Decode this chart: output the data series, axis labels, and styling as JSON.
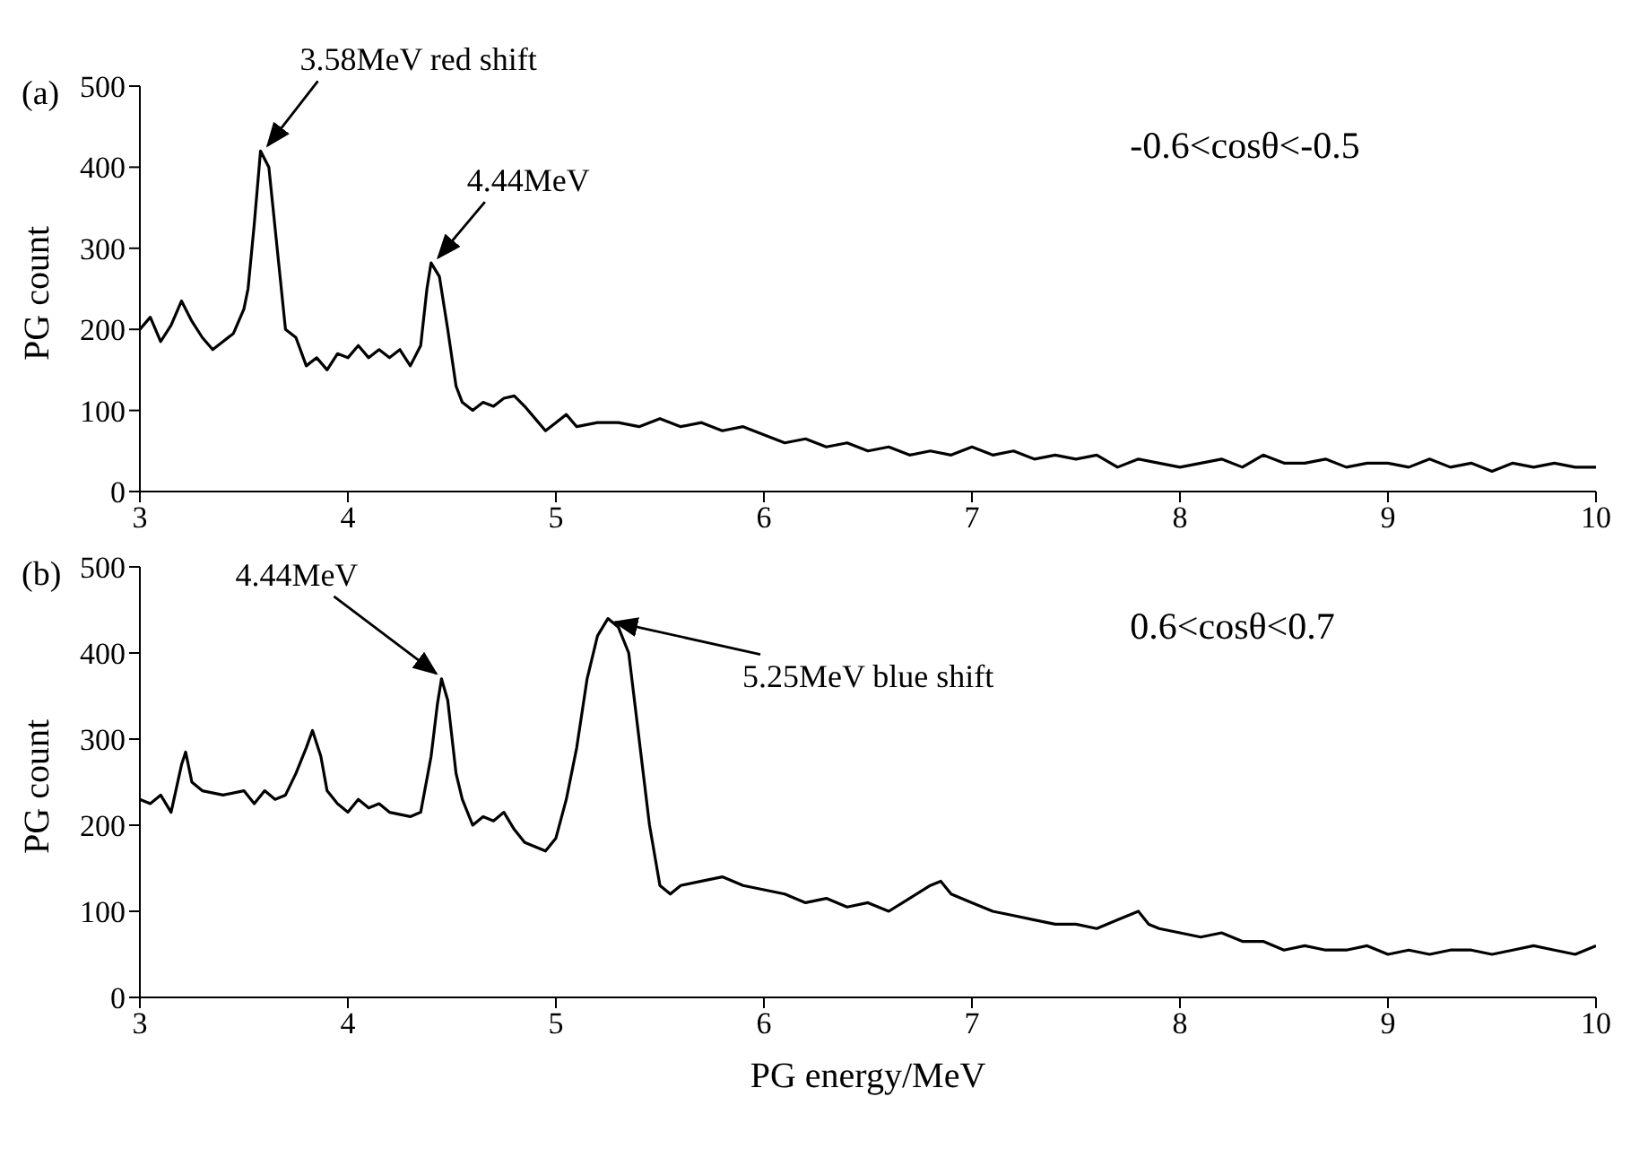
{
  "chart_data": [
    {
      "type": "line",
      "ylabel": "PG count",
      "annotations": [
        "(a)",
        "-0.6<cosθ<-0.5",
        {
          "text": "3.58MeV red shift",
          "x": 3.58,
          "y": 420
        },
        {
          "text": "4.44MeV",
          "x": 4.4,
          "y": 282
        }
      ],
      "x": [
        3.0,
        3.05,
        3.1,
        3.15,
        3.2,
        3.25,
        3.3,
        3.35,
        3.4,
        3.45,
        3.5,
        3.52,
        3.55,
        3.58,
        3.62,
        3.66,
        3.7,
        3.75,
        3.8,
        3.85,
        3.9,
        3.95,
        4.0,
        4.05,
        4.1,
        4.15,
        4.2,
        4.25,
        4.3,
        4.35,
        4.38,
        4.4,
        4.44,
        4.48,
        4.52,
        4.55,
        4.6,
        4.65,
        4.7,
        4.75,
        4.8,
        4.85,
        4.9,
        4.95,
        5.0,
        5.05,
        5.1,
        5.2,
        5.3,
        5.4,
        5.5,
        5.6,
        5.7,
        5.8,
        5.9,
        6.0,
        6.1,
        6.2,
        6.3,
        6.4,
        6.5,
        6.6,
        6.7,
        6.8,
        6.9,
        7.0,
        7.1,
        7.2,
        7.3,
        7.4,
        7.5,
        7.6,
        7.7,
        7.8,
        7.9,
        8.0,
        8.1,
        8.2,
        8.3,
        8.4,
        8.5,
        8.6,
        8.7,
        8.8,
        8.9,
        9.0,
        9.1,
        9.2,
        9.3,
        9.4,
        9.5,
        9.6,
        9.7,
        9.8,
        9.9,
        10.0
      ],
      "series": [
        {
          "color": "#000000",
          "values": [
            200,
            215,
            185,
            205,
            235,
            210,
            190,
            175,
            185,
            195,
            225,
            250,
            330,
            420,
            400,
            300,
            200,
            190,
            155,
            165,
            150,
            170,
            165,
            180,
            165,
            175,
            165,
            175,
            155,
            180,
            250,
            282,
            265,
            200,
            130,
            110,
            100,
            110,
            105,
            115,
            118,
            105,
            90,
            75,
            85,
            95,
            80,
            85,
            85,
            80,
            90,
            80,
            85,
            75,
            80,
            70,
            60,
            65,
            55,
            60,
            50,
            55,
            45,
            50,
            45,
            55,
            45,
            50,
            40,
            45,
            40,
            45,
            30,
            40,
            35,
            30,
            35,
            40,
            30,
            45,
            35,
            35,
            40,
            30,
            35,
            35,
            30,
            40,
            30,
            35,
            25,
            35,
            30,
            35,
            30,
            30
          ]
        }
      ],
      "xlim": [
        3,
        10
      ],
      "xticks": [
        3,
        4,
        5,
        6,
        7,
        8,
        9,
        10
      ],
      "ylim": [
        0,
        500
      ],
      "yticks": [
        0,
        100,
        200,
        300,
        400,
        500
      ],
      "grid": false,
      "legend": false,
      "marker": "none",
      "line_style": "solid"
    },
    {
      "type": "line",
      "xlabel": "PG energy/MeV",
      "ylabel": "PG count",
      "annotations": [
        "(b)",
        "0.6<cosθ<0.7",
        {
          "text": "4.44MeV",
          "x": 4.45,
          "y": 370
        },
        {
          "text": "5.25MeV blue shift",
          "x": 5.25,
          "y": 440
        }
      ],
      "x": [
        3.0,
        3.05,
        3.1,
        3.15,
        3.2,
        3.22,
        3.25,
        3.3,
        3.4,
        3.5,
        3.55,
        3.6,
        3.65,
        3.7,
        3.75,
        3.8,
        3.83,
        3.87,
        3.9,
        3.95,
        4.0,
        4.05,
        4.1,
        4.15,
        4.2,
        4.3,
        4.35,
        4.4,
        4.43,
        4.45,
        4.48,
        4.52,
        4.55,
        4.6,
        4.65,
        4.7,
        4.75,
        4.8,
        4.85,
        4.9,
        4.95,
        5.0,
        5.05,
        5.1,
        5.15,
        5.2,
        5.25,
        5.3,
        5.35,
        5.4,
        5.45,
        5.5,
        5.55,
        5.6,
        5.7,
        5.8,
        5.9,
        6.0,
        6.1,
        6.2,
        6.3,
        6.4,
        6.5,
        6.6,
        6.7,
        6.8,
        6.85,
        6.9,
        7.0,
        7.1,
        7.2,
        7.3,
        7.4,
        7.5,
        7.6,
        7.7,
        7.8,
        7.85,
        7.9,
        8.0,
        8.1,
        8.2,
        8.3,
        8.4,
        8.5,
        8.6,
        8.7,
        8.8,
        8.9,
        9.0,
        9.1,
        9.2,
        9.3,
        9.4,
        9.5,
        9.6,
        9.7,
        9.8,
        9.9,
        10.0
      ],
      "series": [
        {
          "color": "#000000",
          "values": [
            230,
            225,
            235,
            215,
            270,
            285,
            250,
            240,
            235,
            240,
            225,
            240,
            230,
            235,
            260,
            290,
            310,
            280,
            240,
            225,
            215,
            230,
            220,
            225,
            215,
            210,
            215,
            280,
            340,
            370,
            345,
            260,
            230,
            200,
            210,
            205,
            215,
            195,
            180,
            175,
            170,
            185,
            230,
            290,
            370,
            420,
            440,
            430,
            400,
            300,
            200,
            130,
            120,
            130,
            135,
            140,
            130,
            125,
            120,
            110,
            115,
            105,
            110,
            100,
            115,
            130,
            135,
            120,
            110,
            100,
            95,
            90,
            85,
            85,
            80,
            90,
            100,
            85,
            80,
            75,
            70,
            75,
            65,
            65,
            55,
            60,
            55,
            55,
            60,
            50,
            55,
            50,
            55,
            55,
            50,
            55,
            60,
            55,
            50,
            60
          ]
        }
      ],
      "xlim": [
        3,
        10
      ],
      "xticks": [
        3,
        4,
        5,
        6,
        7,
        8,
        9,
        10
      ],
      "ylim": [
        0,
        500
      ],
      "yticks": [
        0,
        100,
        200,
        300,
        400,
        500
      ],
      "grid": false,
      "legend": false,
      "marker": "none",
      "line_style": "solid"
    }
  ]
}
